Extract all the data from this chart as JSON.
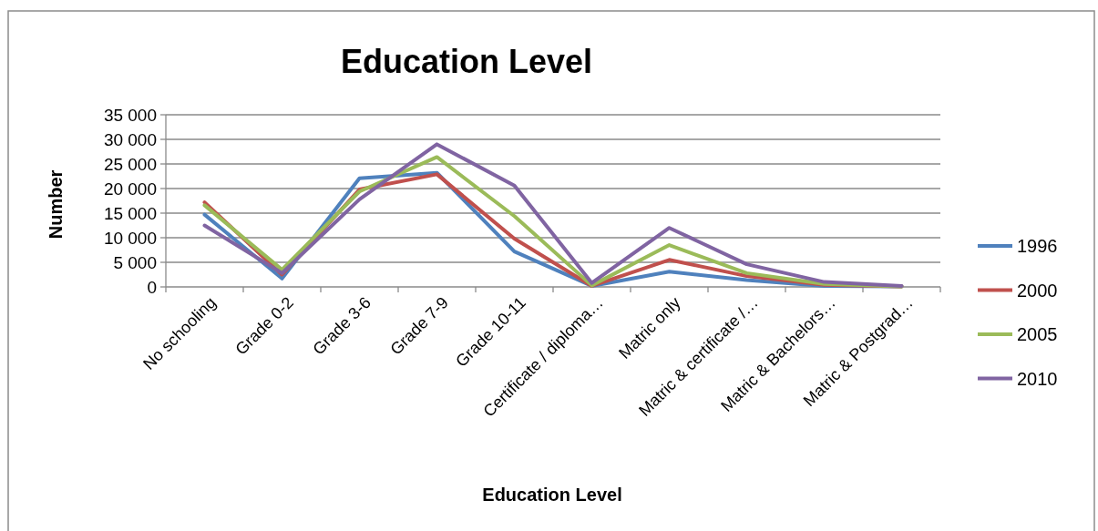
{
  "chart_data": {
    "type": "line",
    "title": "Education Level",
    "xlabel": "Education Level",
    "ylabel": "Number",
    "categories": [
      "No schooling",
      "Grade 0-2",
      "Grade 3-6",
      "Grade 7-9",
      "Grade 10-11",
      "Certificate / diploma…",
      "Matric only",
      "Matric & certificate /…",
      "Matric & Bachelors…",
      "Matric & Postgrad…"
    ],
    "series": [
      {
        "name": "1996",
        "color": "#4f81bd",
        "values": [
          14700,
          1700,
          22100,
          23200,
          7200,
          200,
          3100,
          1400,
          200,
          100
        ]
      },
      {
        "name": "2000",
        "color": "#c0504d",
        "values": [
          17200,
          2500,
          19800,
          22900,
          9800,
          200,
          5500,
          2200,
          400,
          100
        ]
      },
      {
        "name": "2005",
        "color": "#9bbb59",
        "values": [
          16600,
          3500,
          19400,
          26400,
          14400,
          300,
          8500,
          2800,
          600,
          100
        ]
      },
      {
        "name": "2010",
        "color": "#8064a2",
        "values": [
          12500,
          2800,
          17800,
          29000,
          20600,
          800,
          12000,
          4600,
          1000,
          200
        ]
      }
    ],
    "ylim": [
      0,
      35000
    ],
    "yticks": [
      0,
      {
        "value": 5000,
        "label": "5 000"
      },
      {
        "value": 10000,
        "label": "10 000"
      },
      {
        "value": 15000,
        "label": "15 000"
      },
      {
        "value": 20000,
        "label": "20 000"
      },
      {
        "value": 25000,
        "label": "25 000"
      },
      {
        "value": 30000,
        "label": "30 000"
      },
      {
        "value": 35000,
        "label": "35 000"
      }
    ],
    "grid": "y",
    "legend": "right",
    "marker": "none",
    "line_style": "solid"
  }
}
